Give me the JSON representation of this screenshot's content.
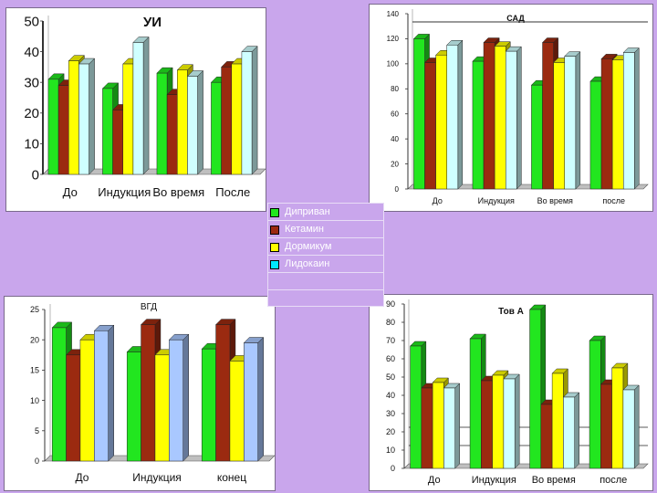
{
  "legend": {
    "entries": [
      "Диприван",
      "Кетамин",
      "Дормикум",
      "Лидокаин"
    ]
  },
  "colors": {
    "Диприван": "#22e61f",
    "Кетамин": "#9b2a10",
    "Дормикум": "#ffff00",
    "Лидокаин": "#cfffff",
    "Лидокаин_alt": "#a9c8ff"
  },
  "chart_data": [
    {
      "type": "bar",
      "title": "УИ",
      "categories": [
        "До",
        "Индукция",
        "Во время",
        "После"
      ],
      "series": [
        {
          "name": "Диприван",
          "values": [
            31,
            28,
            33,
            30
          ]
        },
        {
          "name": "Кетамин",
          "values": [
            29,
            21,
            26,
            35
          ]
        },
        {
          "name": "Дормикум",
          "values": [
            37,
            36,
            34,
            36
          ]
        },
        {
          "name": "Лидокаин",
          "values": [
            36,
            43,
            32,
            40
          ]
        }
      ],
      "ylim": [
        0,
        50
      ],
      "yticks": [
        "0",
        "10",
        "20",
        "30",
        "40",
        "50"
      ],
      "grid": false
    },
    {
      "type": "bar",
      "title": "САД",
      "categories": [
        "До",
        "Индукция",
        "Во время",
        "после"
      ],
      "series": [
        {
          "name": "Диприван",
          "values": [
            120,
            102,
            83,
            86
          ]
        },
        {
          "name": "Кетамин",
          "values": [
            101,
            117,
            117,
            104
          ]
        },
        {
          "name": "Дормикум",
          "values": [
            107,
            114,
            101,
            103
          ]
        },
        {
          "name": "Лидокаин",
          "values": [
            115,
            110,
            106,
            109
          ]
        }
      ],
      "ylim": [
        0,
        140
      ],
      "yticks": [
        "0",
        "20",
        "40",
        "60",
        "80",
        "100",
        "120",
        "140"
      ],
      "grid": false
    },
    {
      "type": "bar",
      "title": "ВГД",
      "categories": [
        "До",
        "Индукция",
        "конец"
      ],
      "series": [
        {
          "name": "Диприван",
          "values": [
            22,
            18,
            18.5
          ]
        },
        {
          "name": "Кетамин",
          "values": [
            17.5,
            22.5,
            22.5
          ]
        },
        {
          "name": "Дормикум",
          "values": [
            20,
            17.5,
            16.5
          ]
        },
        {
          "name": "Лидокаин",
          "values": [
            21.5,
            20,
            19.5
          ]
        }
      ],
      "ylim": [
        0,
        25
      ],
      "yticks": [
        "0",
        "5",
        "10",
        "15",
        "20",
        "25"
      ],
      "grid": false
    },
    {
      "type": "bar",
      "title": "Тов А",
      "categories": [
        "До",
        "Индукция",
        "Во время",
        "после"
      ],
      "series": [
        {
          "name": "Диприван",
          "values": [
            67,
            71,
            87,
            70
          ]
        },
        {
          "name": "Кетамин",
          "values": [
            44,
            48,
            35,
            46
          ]
        },
        {
          "name": "Дормикум",
          "values": [
            47,
            51,
            52,
            55
          ]
        },
        {
          "name": "Лидокаин",
          "values": [
            44,
            49,
            39,
            43
          ]
        }
      ],
      "ylim": [
        0,
        90
      ],
      "yticks": [
        "0",
        "10",
        "20",
        "30",
        "40",
        "50",
        "60",
        "70",
        "80",
        "90"
      ],
      "grid": true
    }
  ]
}
